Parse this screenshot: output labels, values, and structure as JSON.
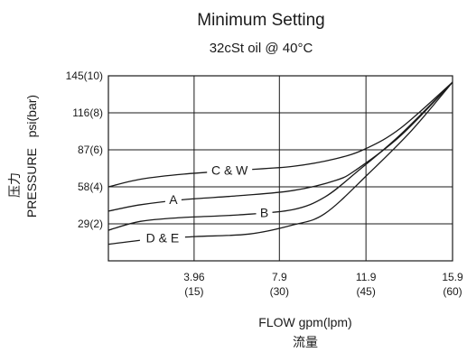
{
  "chart_data": {
    "type": "line",
    "title": "Minimum Setting",
    "subtitle": "32cSt oil @ 40°C",
    "xlabel": "FLOW gpm(lpm)",
    "xlabel_cn": "流量",
    "ylabel": "PRESSURE   psi(bar)",
    "ylabel_cn": "压力",
    "xlim": [
      0,
      15.9
    ],
    "ylim": [
      0,
      145
    ],
    "x_ticks": [
      {
        "value": 3.96,
        "label": "3.96",
        "sublabel": "(15)"
      },
      {
        "value": 7.9,
        "label": "7.9",
        "sublabel": "(30)"
      },
      {
        "value": 11.9,
        "label": "11.9",
        "sublabel": "(45)"
      },
      {
        "value": 15.9,
        "label": "15.9",
        "sublabel": "(60)"
      }
    ],
    "y_ticks": [
      {
        "value": 29,
        "label": "29(2)"
      },
      {
        "value": 58,
        "label": "58(4)"
      },
      {
        "value": 87,
        "label": "87(6)"
      },
      {
        "value": 116,
        "label": "116(8)"
      },
      {
        "value": 145,
        "label": "145(10)"
      }
    ],
    "grid": true,
    "series": [
      {
        "name": "C & W",
        "x": [
          0,
          1.5,
          3.5,
          6.0,
          8.5,
          10.5,
          11.9,
          13.5,
          15.9
        ],
        "y": [
          58,
          64,
          68,
          71,
          74,
          80,
          88,
          104,
          140
        ],
        "label_at": [
          5.6,
          71
        ]
      },
      {
        "name": "A",
        "x": [
          0,
          1.5,
          3.5,
          6.0,
          8.5,
          10.5,
          11.5,
          13.5,
          15.9
        ],
        "y": [
          39,
          44,
          48,
          51,
          55,
          63,
          72,
          98,
          140
        ],
        "label_at": [
          3.0,
          48
        ]
      },
      {
        "name": "B",
        "x": [
          0,
          1.5,
          3.5,
          6.0,
          8.5,
          10.0,
          11.5,
          13.5,
          15.9
        ],
        "y": [
          24,
          31,
          34,
          36,
          40,
          50,
          70,
          99,
          140
        ],
        "label_at": [
          7.2,
          38
        ]
      },
      {
        "name": "D & E",
        "x": [
          0,
          2.0,
          4.0,
          6.5,
          8.5,
          10.0,
          12.0,
          14.0,
          15.9
        ],
        "y": [
          13,
          17,
          19,
          21,
          28,
          37,
          68,
          102,
          140
        ],
        "label_at": [
          2.5,
          18
        ]
      }
    ]
  }
}
